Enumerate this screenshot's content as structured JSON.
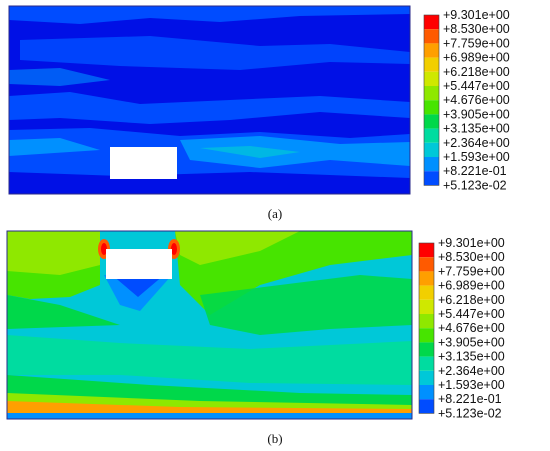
{
  "figure": {
    "panels": [
      {
        "label": "(a)"
      },
      {
        "label": "(b)"
      }
    ],
    "colorbar": {
      "labels": [
        "+9.301e+00",
        "+8.530e+00",
        "+7.759e+00",
        "+6.989e+00",
        "+6.218e+00",
        "+5.447e+00",
        "+4.676e+00",
        "+3.905e+00",
        "+3.135e+00",
        "+2.364e+00",
        "+1.593e+00",
        "+8.221e-01",
        "+5.123e-02"
      ],
      "colors": [
        "#ff0000",
        "#ff5a00",
        "#ff9f00",
        "#f2cf00",
        "#cfe800",
        "#8fe800",
        "#47e400",
        "#00d84a",
        "#00dca0",
        "#00c8d8",
        "#0090ff",
        "#004cff",
        "#0010e6"
      ]
    }
  }
}
